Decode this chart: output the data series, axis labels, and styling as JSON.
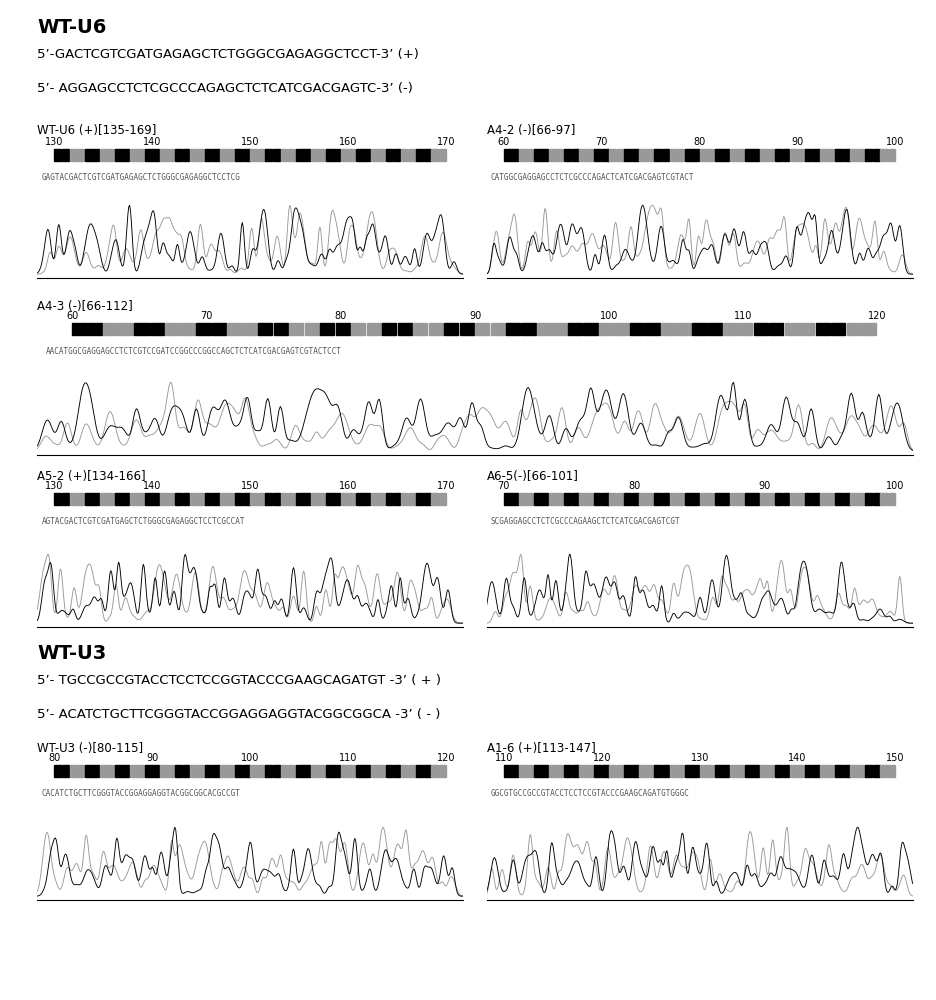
{
  "title_wtu6": "WT-U6",
  "title_wtu3": "WT-U3",
  "seq_u6_plus": "5’-GACTCGTCGATGAGAGCTCTGGGCGAGAGGCTCCT-3’ (+)",
  "seq_u6_minus": "5’- AGGAGCCTCTCGCCCAGAGCTCTCATCGACGAGTC-3’ (-)",
  "seq_u3_plus": "5’- TGCCGCCGTACCTCCTCCGGTACCCGAAGCAGATGT -3’ ( + )",
  "seq_u3_minus": "5’- ACATCTGCTTCGGGTACCGGAGGAGGTACGGCGGCA -3’ ( - )",
  "bg_color": "#ffffff",
  "text_color": "#000000"
}
